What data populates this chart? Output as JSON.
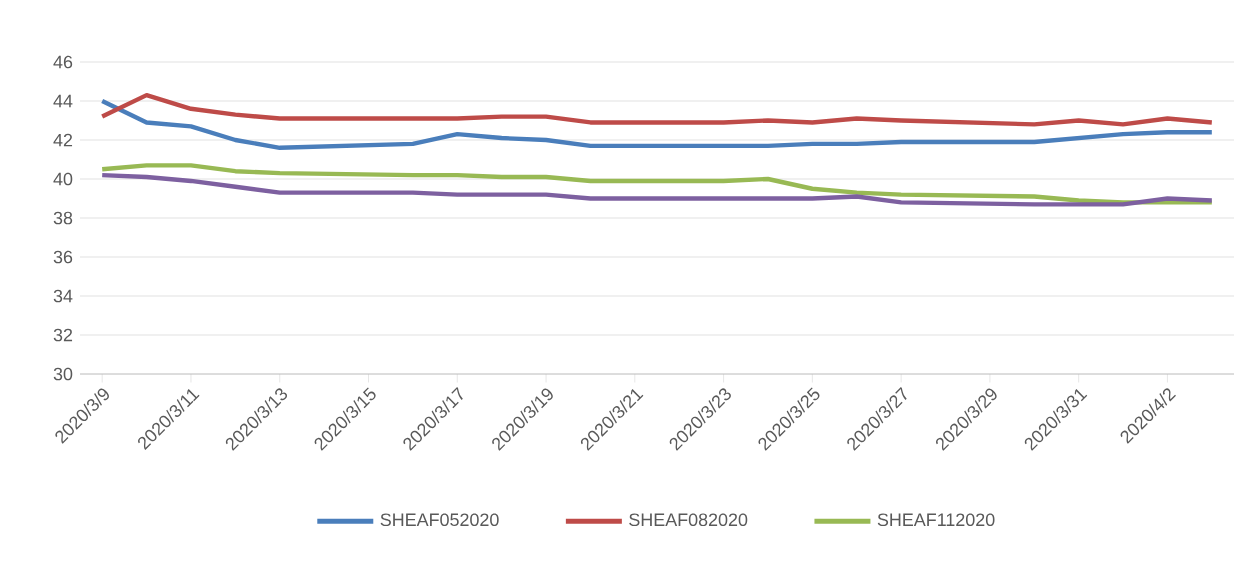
{
  "chart_data": {
    "type": "line",
    "x": [
      "2020-03-09",
      "2020-03-10",
      "2020-03-11",
      "2020-03-12",
      "2020-03-13",
      "2020-03-16",
      "2020-03-17",
      "2020-03-18",
      "2020-03-19",
      "2020-03-20",
      "2020-03-23",
      "2020-03-24",
      "2020-03-25",
      "2020-03-26",
      "2020-03-27",
      "2020-03-30",
      "2020-03-31",
      "2020-04-01",
      "2020-04-02",
      "2020-04-03"
    ],
    "series": [
      {
        "name": "SHEAF052020",
        "color": "#4a7ebb",
        "values": [
          44.0,
          42.9,
          42.7,
          42.0,
          41.6,
          41.8,
          42.3,
          42.1,
          42.0,
          41.7,
          41.7,
          41.7,
          41.8,
          41.8,
          41.9,
          41.9,
          42.1,
          42.3,
          42.4,
          42.4
        ]
      },
      {
        "name": "SHEAF082020",
        "color": "#be4b48",
        "values": [
          43.2,
          44.3,
          43.6,
          43.3,
          43.1,
          43.1,
          43.1,
          43.2,
          43.2,
          42.9,
          42.9,
          43.0,
          42.9,
          43.1,
          43.0,
          42.8,
          43.0,
          42.8,
          43.1,
          42.9
        ]
      },
      {
        "name": "SHEAF112020",
        "color": "#98b954",
        "values": [
          40.5,
          40.7,
          40.7,
          40.4,
          40.3,
          40.2,
          40.2,
          40.1,
          40.1,
          39.9,
          39.9,
          40.0,
          39.5,
          39.3,
          39.2,
          39.1,
          38.9,
          38.8,
          38.8,
          38.8
        ]
      },
      {
        "color": "#7d60a0",
        "values": [
          40.2,
          40.1,
          39.9,
          39.6,
          39.3,
          39.3,
          39.2,
          39.2,
          39.2,
          39.0,
          39.0,
          39.0,
          39.0,
          39.1,
          38.8,
          38.7,
          38.7,
          38.7,
          39.0,
          38.9
        ]
      }
    ],
    "xlim": [
      "2020-03-08T12:00",
      "2020-04-03T12:00"
    ],
    "xticks": [
      {
        "value": "2020-03-09",
        "label": "2020/3/9"
      },
      {
        "value": "2020-03-11",
        "label": "2020/3/11"
      },
      {
        "value": "2020-03-13",
        "label": "2020/3/13"
      },
      {
        "value": "2020-03-15",
        "label": "2020/3/15"
      },
      {
        "value": "2020-03-17",
        "label": "2020/3/17"
      },
      {
        "value": "2020-03-19",
        "label": "2020/3/19"
      },
      {
        "value": "2020-03-21",
        "label": "2020/3/21"
      },
      {
        "value": "2020-03-23",
        "label": "2020/3/23"
      },
      {
        "value": "2020-03-25",
        "label": "2020/3/25"
      },
      {
        "value": "2020-03-27",
        "label": "2020/3/27"
      },
      {
        "value": "2020-03-29",
        "label": "2020/3/29"
      },
      {
        "value": "2020-03-31",
        "label": "2020/3/31"
      },
      {
        "value": "2020-04-02",
        "label": "2020/4/2"
      }
    ],
    "ylim": [
      30,
      46
    ],
    "yticks": [
      30,
      32,
      34,
      36,
      38,
      40,
      42,
      44,
      46
    ],
    "grid": "y",
    "legend": "bottom",
    "marker": "none",
    "line_style": "solid"
  }
}
